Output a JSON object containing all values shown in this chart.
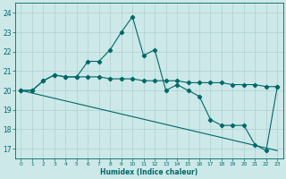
{
  "xlabel": "Humidex (Indice chaleur)",
  "bg_color": "#cce8e8",
  "grid_color": "#b0d0d0",
  "line_color": "#006868",
  "xlim": [
    -0.5,
    23.5
  ],
  "ylim": [
    16.5,
    24.5
  ],
  "yticks": [
    17,
    18,
    19,
    20,
    21,
    22,
    23,
    24
  ],
  "xticks": [
    0,
    1,
    2,
    3,
    4,
    5,
    6,
    7,
    8,
    9,
    10,
    11,
    12,
    13,
    14,
    15,
    16,
    17,
    18,
    19,
    20,
    21,
    22,
    23
  ],
  "line1_x": [
    0,
    1,
    2,
    3,
    4,
    5,
    6,
    7,
    8,
    9,
    10,
    11,
    12,
    13,
    14,
    15,
    16,
    17,
    18,
    19,
    20,
    21,
    22,
    23
  ],
  "line1_y": [
    20.0,
    20.0,
    20.5,
    20.8,
    20.7,
    20.7,
    20.7,
    20.7,
    20.6,
    20.6,
    20.6,
    20.5,
    20.5,
    20.5,
    20.5,
    20.4,
    20.4,
    20.4,
    20.4,
    20.3,
    20.3,
    20.3,
    20.2,
    20.2
  ],
  "line2_x": [
    0,
    1,
    2,
    3,
    4,
    5,
    6,
    7,
    8,
    9,
    10,
    11,
    12,
    13,
    14,
    15,
    16,
    17,
    18,
    19,
    20,
    21,
    22,
    23
  ],
  "line2_y": [
    20.0,
    20.0,
    20.5,
    20.8,
    20.7,
    20.7,
    21.5,
    21.5,
    22.1,
    23.0,
    23.8,
    21.8,
    22.1,
    20.0,
    20.3,
    20.0,
    19.7,
    18.5,
    18.2,
    18.2,
    18.2,
    17.2,
    16.9,
    20.2
  ],
  "line3_x": [
    0,
    23
  ],
  "line3_y": [
    20.0,
    16.9
  ]
}
